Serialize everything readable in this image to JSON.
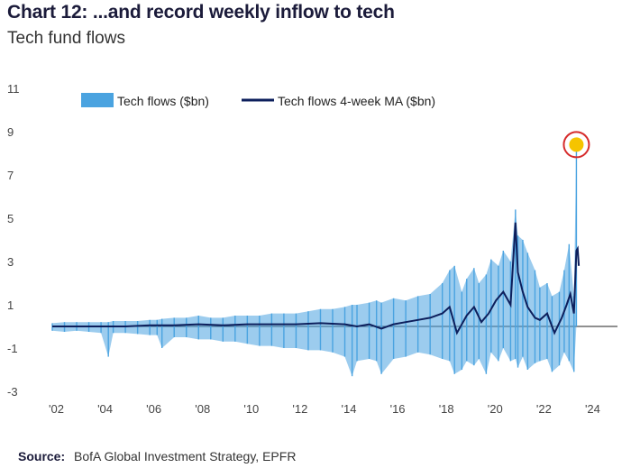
{
  "header": {
    "title": "Chart 12: ...and record weekly inflow to tech",
    "subtitle": "Tech fund flows"
  },
  "footer": {
    "source_label": "Source:",
    "source_text": "BofA Global Investment Strategy, EPFR"
  },
  "chart_data": {
    "type": "line",
    "xlabel": "",
    "ylabel": "",
    "xlim": [
      2002,
      2025
    ],
    "ylim": [
      -3,
      11
    ],
    "yticks": [
      -3,
      -1,
      1,
      3,
      5,
      7,
      9,
      11
    ],
    "xticks": [
      {
        "value": 2002,
        "label": "'02"
      },
      {
        "value": 2004,
        "label": "'04"
      },
      {
        "value": 2006,
        "label": "'06"
      },
      {
        "value": 2008,
        "label": "'08"
      },
      {
        "value": 2010,
        "label": "'10"
      },
      {
        "value": 2012,
        "label": "'12"
      },
      {
        "value": 2014,
        "label": "'14"
      },
      {
        "value": 2016,
        "label": "'16"
      },
      {
        "value": 2018,
        "label": "'18"
      },
      {
        "value": 2020,
        "label": "'20"
      },
      {
        "value": 2022,
        "label": "'22"
      },
      {
        "value": 2024,
        "label": "'24"
      }
    ],
    "legend_position": "top",
    "highlight": {
      "x": 2023.5,
      "y": 8.4,
      "marker": "yellow dot circled in red"
    },
    "colors": {
      "flows": "#4aa3e0",
      "ma": "#0d1f5c",
      "highlight_fill": "#f5c400",
      "highlight_ring": "#d62b2b"
    },
    "series": [
      {
        "name": "Tech flows ($bn)",
        "style": "spiky-bars",
        "x": [
          2002.0,
          2002.5,
          2003.0,
          2003.5,
          2004.0,
          2004.3,
          2004.5,
          2005.0,
          2005.5,
          2006.0,
          2006.3,
          2006.5,
          2007.0,
          2007.5,
          2008.0,
          2008.5,
          2009.0,
          2009.5,
          2010.0,
          2010.5,
          2011.0,
          2011.5,
          2012.0,
          2012.5,
          2013.0,
          2013.5,
          2014.0,
          2014.3,
          2014.5,
          2015.0,
          2015.3,
          2015.5,
          2016.0,
          2016.5,
          2017.0,
          2017.5,
          2018.0,
          2018.3,
          2018.5,
          2018.8,
          2019.0,
          2019.3,
          2019.5,
          2019.8,
          2020.0,
          2020.3,
          2020.5,
          2020.8,
          2021.0,
          2021.1,
          2021.3,
          2021.5,
          2021.8,
          2022.0,
          2022.3,
          2022.5,
          2022.8,
          2023.0,
          2023.2,
          2023.4,
          2023.5
        ],
        "hi": [
          0.15,
          0.2,
          0.2,
          0.2,
          0.2,
          0.2,
          0.25,
          0.25,
          0.25,
          0.3,
          0.3,
          0.35,
          0.4,
          0.4,
          0.5,
          0.4,
          0.4,
          0.5,
          0.5,
          0.5,
          0.6,
          0.6,
          0.6,
          0.7,
          0.8,
          0.8,
          0.9,
          1.0,
          1.0,
          1.1,
          1.2,
          1.1,
          1.3,
          1.2,
          1.4,
          1.5,
          2.0,
          2.6,
          2.8,
          1.6,
          2.2,
          2.7,
          2.0,
          2.4,
          3.1,
          2.8,
          3.5,
          3.0,
          5.4,
          4.2,
          4.0,
          3.4,
          2.6,
          1.8,
          2.0,
          1.4,
          1.6,
          2.6,
          3.8,
          1.4,
          8.4
        ],
        "lo": [
          -0.2,
          -0.25,
          -0.2,
          -0.25,
          -0.3,
          -1.4,
          -0.3,
          -0.3,
          -0.35,
          -0.4,
          -0.4,
          -1.0,
          -0.5,
          -0.5,
          -0.6,
          -0.6,
          -0.7,
          -0.7,
          -0.8,
          -0.9,
          -0.9,
          -1.0,
          -1.0,
          -1.1,
          -1.1,
          -1.2,
          -1.4,
          -2.3,
          -1.6,
          -1.5,
          -1.6,
          -2.2,
          -1.5,
          -1.4,
          -1.2,
          -1.3,
          -1.5,
          -1.6,
          -2.2,
          -2.0,
          -1.6,
          -1.8,
          -1.5,
          -2.2,
          -1.2,
          -1.6,
          -1.0,
          -1.6,
          -1.5,
          -1.9,
          -1.4,
          -2.0,
          -1.7,
          -1.6,
          -1.5,
          -2.1,
          -1.8,
          -1.2,
          -1.6,
          -2.1,
          0.0
        ]
      },
      {
        "name": "Tech flows 4-week MA ($bn)",
        "style": "line",
        "x": [
          2002.0,
          2003.0,
          2004.0,
          2005.0,
          2006.0,
          2007.0,
          2008.0,
          2009.0,
          2010.0,
          2011.0,
          2012.0,
          2013.0,
          2014.0,
          2014.5,
          2015.0,
          2015.5,
          2016.0,
          2016.5,
          2017.0,
          2017.5,
          2018.0,
          2018.3,
          2018.6,
          2019.0,
          2019.3,
          2019.6,
          2019.9,
          2020.2,
          2020.5,
          2020.8,
          2021.0,
          2021.1,
          2021.3,
          2021.5,
          2021.8,
          2022.0,
          2022.3,
          2022.6,
          2022.9,
          2023.1,
          2023.25,
          2023.4,
          2023.5,
          2023.55,
          2023.6
        ],
        "y": [
          0.0,
          0.0,
          0.0,
          0.0,
          0.05,
          0.05,
          0.1,
          0.05,
          0.1,
          0.1,
          0.1,
          0.15,
          0.1,
          0.0,
          0.1,
          -0.1,
          0.1,
          0.2,
          0.3,
          0.4,
          0.6,
          0.9,
          -0.3,
          0.5,
          0.9,
          0.2,
          0.6,
          1.2,
          1.6,
          1.0,
          4.8,
          2.5,
          1.6,
          0.9,
          0.4,
          0.3,
          0.6,
          -0.3,
          0.4,
          1.0,
          1.5,
          0.6,
          3.5,
          3.6,
          2.8
        ]
      }
    ]
  }
}
